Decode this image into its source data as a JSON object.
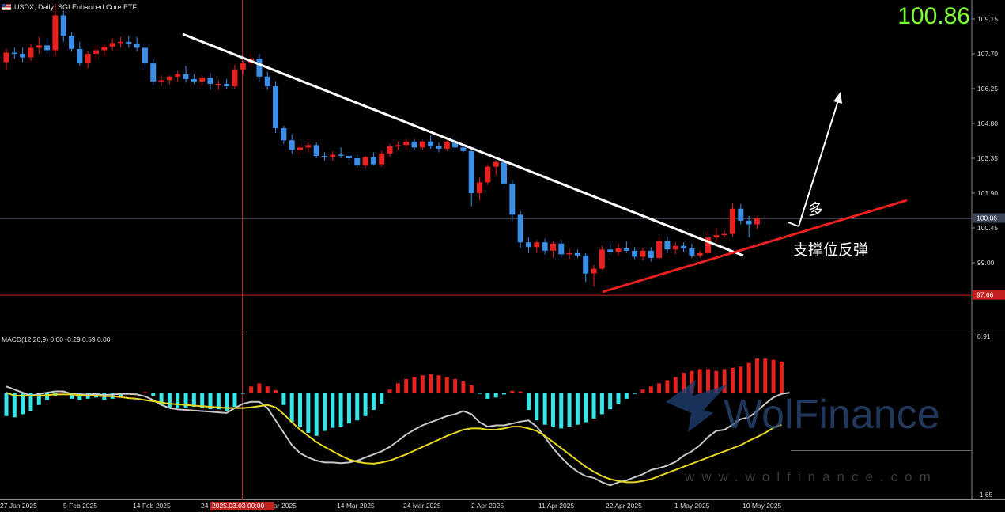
{
  "header": {
    "symbol_line": "USDX, Daily:  SGI Enhanced Core ETF",
    "price_big": "100.86"
  },
  "annotations": {
    "bull_label": "多",
    "support_label": "支撑位反弹"
  },
  "watermark": {
    "brand": "WolFinance",
    "url": "www.wolfinance.com"
  },
  "colors": {
    "bull": "#e8201e",
    "bear": "#3b8fe8",
    "hist_pos": "#e8201e",
    "hist_neg": "#35e6e8",
    "macd_line": "#c8c8c8",
    "signal_line": "#e6d820",
    "trendline": "#ffffff",
    "support_line": "#e8201e",
    "price_big": "#7cff33"
  },
  "chart_data": [
    {
      "type": "candlestick",
      "title": "USDX, Daily: SGI Enhanced Core ETF",
      "ylim": [
        96.6,
        110.1
      ],
      "y_ticks": [
        "109.15",
        "107.70",
        "106.25",
        "104.80",
        "103.35",
        "101.90",
        "100.45",
        "99.00"
      ],
      "current_price": "100.86",
      "low_marker": "97.66",
      "crosshair_date": "2025.03.03 00:00",
      "x_labels": [
        "27 Jan 2025",
        "5 Feb 2025",
        "14 Feb 2025",
        "24",
        "Mar 2025",
        "14 Mar 2025",
        "24 Mar 2025",
        "2 Apr 2025",
        "11 Apr 2025",
        "22 Apr 2025",
        "1 May 2025",
        "10 May 2025"
      ],
      "candles": [
        {
          "o": 107.35,
          "h": 107.9,
          "l": 107.05,
          "c": 107.75
        },
        {
          "o": 107.75,
          "h": 107.95,
          "l": 107.5,
          "c": 107.7
        },
        {
          "o": 107.7,
          "h": 107.95,
          "l": 107.35,
          "c": 107.55
        },
        {
          "o": 107.55,
          "h": 108.1,
          "l": 107.4,
          "c": 107.95
        },
        {
          "o": 107.95,
          "h": 108.4,
          "l": 107.7,
          "c": 108.05
        },
        {
          "o": 108.05,
          "h": 108.35,
          "l": 107.7,
          "c": 107.85
        },
        {
          "o": 107.85,
          "h": 109.8,
          "l": 107.6,
          "c": 109.3
        },
        {
          "o": 109.3,
          "h": 109.5,
          "l": 108.2,
          "c": 108.45
        },
        {
          "o": 108.45,
          "h": 108.6,
          "l": 107.8,
          "c": 107.9
        },
        {
          "o": 107.9,
          "h": 108.2,
          "l": 107.2,
          "c": 107.3
        },
        {
          "o": 107.3,
          "h": 107.8,
          "l": 107.1,
          "c": 107.7
        },
        {
          "o": 107.7,
          "h": 108.05,
          "l": 107.45,
          "c": 107.85
        },
        {
          "o": 107.85,
          "h": 108.1,
          "l": 107.6,
          "c": 108.0
        },
        {
          "o": 108.0,
          "h": 108.35,
          "l": 107.85,
          "c": 108.15
        },
        {
          "o": 108.15,
          "h": 108.4,
          "l": 107.95,
          "c": 108.2
        },
        {
          "o": 108.2,
          "h": 108.45,
          "l": 107.95,
          "c": 108.1
        },
        {
          "o": 108.1,
          "h": 108.4,
          "l": 107.8,
          "c": 107.95
        },
        {
          "o": 107.95,
          "h": 108.1,
          "l": 107.1,
          "c": 107.3
        },
        {
          "o": 107.3,
          "h": 107.5,
          "l": 106.4,
          "c": 106.55
        },
        {
          "o": 106.55,
          "h": 106.8,
          "l": 106.35,
          "c": 106.6
        },
        {
          "o": 106.6,
          "h": 106.8,
          "l": 106.45,
          "c": 106.75
        },
        {
          "o": 106.75,
          "h": 107.0,
          "l": 106.55,
          "c": 106.85
        },
        {
          "o": 106.85,
          "h": 107.2,
          "l": 106.5,
          "c": 106.65
        },
        {
          "o": 106.65,
          "h": 106.85,
          "l": 106.45,
          "c": 106.55
        },
        {
          "o": 106.55,
          "h": 106.8,
          "l": 106.35,
          "c": 106.7
        },
        {
          "o": 106.7,
          "h": 106.9,
          "l": 106.2,
          "c": 106.45
        },
        {
          "o": 106.45,
          "h": 106.6,
          "l": 106.2,
          "c": 106.45
        },
        {
          "o": 106.45,
          "h": 106.65,
          "l": 106.25,
          "c": 106.35
        },
        {
          "o": 106.35,
          "h": 107.25,
          "l": 106.25,
          "c": 107.05
        },
        {
          "o": 107.05,
          "h": 107.4,
          "l": 106.85,
          "c": 107.3
        },
        {
          "o": 107.3,
          "h": 107.7,
          "l": 107.15,
          "c": 107.5
        },
        {
          "o": 107.5,
          "h": 107.7,
          "l": 106.55,
          "c": 106.75
        },
        {
          "o": 106.75,
          "h": 106.95,
          "l": 106.2,
          "c": 106.35
        },
        {
          "o": 106.35,
          "h": 106.55,
          "l": 104.4,
          "c": 104.6
        },
        {
          "o": 104.6,
          "h": 104.7,
          "l": 103.95,
          "c": 104.1
        },
        {
          "o": 104.1,
          "h": 104.35,
          "l": 103.55,
          "c": 103.7
        },
        {
          "o": 103.7,
          "h": 103.95,
          "l": 103.5,
          "c": 103.8
        },
        {
          "o": 103.8,
          "h": 104.0,
          "l": 103.6,
          "c": 103.9
        },
        {
          "o": 103.9,
          "h": 104.0,
          "l": 103.35,
          "c": 103.45
        },
        {
          "o": 103.45,
          "h": 103.6,
          "l": 103.25,
          "c": 103.4
        },
        {
          "o": 103.4,
          "h": 103.65,
          "l": 103.25,
          "c": 103.5
        },
        {
          "o": 103.5,
          "h": 103.8,
          "l": 103.35,
          "c": 103.45
        },
        {
          "o": 103.45,
          "h": 103.55,
          "l": 103.25,
          "c": 103.35
        },
        {
          "o": 103.35,
          "h": 103.5,
          "l": 102.95,
          "c": 103.05
        },
        {
          "o": 103.05,
          "h": 103.45,
          "l": 102.95,
          "c": 103.4
        },
        {
          "o": 103.4,
          "h": 103.6,
          "l": 103.05,
          "c": 103.1
        },
        {
          "o": 103.1,
          "h": 103.65,
          "l": 103.0,
          "c": 103.55
        },
        {
          "o": 103.55,
          "h": 103.95,
          "l": 103.4,
          "c": 103.85
        },
        {
          "o": 103.85,
          "h": 104.05,
          "l": 103.7,
          "c": 103.9
        },
        {
          "o": 103.9,
          "h": 104.15,
          "l": 103.7,
          "c": 104.05
        },
        {
          "o": 104.05,
          "h": 104.15,
          "l": 103.7,
          "c": 103.8
        },
        {
          "o": 103.8,
          "h": 104.1,
          "l": 103.7,
          "c": 104.05
        },
        {
          "o": 104.05,
          "h": 104.3,
          "l": 103.75,
          "c": 103.85
        },
        {
          "o": 103.85,
          "h": 104.0,
          "l": 103.6,
          "c": 103.75
        },
        {
          "o": 103.75,
          "h": 104.25,
          "l": 103.65,
          "c": 104.05
        },
        {
          "o": 104.05,
          "h": 104.2,
          "l": 103.7,
          "c": 103.8
        },
        {
          "o": 103.8,
          "h": 103.95,
          "l": 103.6,
          "c": 103.65
        },
        {
          "o": 103.65,
          "h": 103.8,
          "l": 101.35,
          "c": 101.9
        },
        {
          "o": 101.9,
          "h": 102.55,
          "l": 101.6,
          "c": 102.35
        },
        {
          "o": 102.35,
          "h": 103.1,
          "l": 102.25,
          "c": 103.0
        },
        {
          "o": 103.0,
          "h": 103.25,
          "l": 102.65,
          "c": 103.2
        },
        {
          "o": 103.2,
          "h": 103.25,
          "l": 102.1,
          "c": 102.3
        },
        {
          "o": 102.3,
          "h": 102.45,
          "l": 100.75,
          "c": 101.0
        },
        {
          "o": 101.0,
          "h": 101.15,
          "l": 99.6,
          "c": 99.85
        },
        {
          "o": 99.85,
          "h": 100.05,
          "l": 99.4,
          "c": 99.65
        },
        {
          "o": 99.65,
          "h": 99.95,
          "l": 99.4,
          "c": 99.85
        },
        {
          "o": 99.85,
          "h": 100.0,
          "l": 99.35,
          "c": 99.5
        },
        {
          "o": 99.5,
          "h": 99.9,
          "l": 99.2,
          "c": 99.8
        },
        {
          "o": 99.8,
          "h": 99.95,
          "l": 99.2,
          "c": 99.35
        },
        {
          "o": 99.35,
          "h": 99.6,
          "l": 99.15,
          "c": 99.4
        },
        {
          "o": 99.4,
          "h": 99.55,
          "l": 99.2,
          "c": 99.3
        },
        {
          "o": 99.3,
          "h": 99.4,
          "l": 98.2,
          "c": 98.55
        },
        {
          "o": 98.55,
          "h": 98.9,
          "l": 98.0,
          "c": 98.75
        },
        {
          "o": 98.75,
          "h": 99.7,
          "l": 98.7,
          "c": 99.55
        },
        {
          "o": 99.55,
          "h": 99.85,
          "l": 99.3,
          "c": 99.45
        },
        {
          "o": 99.45,
          "h": 99.8,
          "l": 99.3,
          "c": 99.6
        },
        {
          "o": 99.6,
          "h": 99.9,
          "l": 99.4,
          "c": 99.5
        },
        {
          "o": 99.5,
          "h": 99.65,
          "l": 99.15,
          "c": 99.25
        },
        {
          "o": 99.25,
          "h": 99.6,
          "l": 99.1,
          "c": 99.5
        },
        {
          "o": 99.5,
          "h": 99.65,
          "l": 99.05,
          "c": 99.2
        },
        {
          "o": 99.2,
          "h": 100.05,
          "l": 99.15,
          "c": 99.9
        },
        {
          "o": 99.9,
          "h": 100.1,
          "l": 99.4,
          "c": 99.55
        },
        {
          "o": 99.55,
          "h": 99.85,
          "l": 99.35,
          "c": 99.7
        },
        {
          "o": 99.7,
          "h": 99.85,
          "l": 99.45,
          "c": 99.6
        },
        {
          "o": 99.6,
          "h": 99.8,
          "l": 99.2,
          "c": 99.3
        },
        {
          "o": 99.3,
          "h": 99.5,
          "l": 99.2,
          "c": 99.4
        },
        {
          "o": 99.4,
          "h": 100.3,
          "l": 99.35,
          "c": 100.05
        },
        {
          "o": 100.05,
          "h": 100.45,
          "l": 99.85,
          "c": 100.15
        },
        {
          "o": 100.15,
          "h": 100.35,
          "l": 100.05,
          "c": 100.2
        },
        {
          "o": 100.2,
          "h": 101.5,
          "l": 100.1,
          "c": 101.25
        },
        {
          "o": 101.25,
          "h": 101.45,
          "l": 100.6,
          "c": 100.75
        },
        {
          "o": 100.75,
          "h": 100.95,
          "l": 100.05,
          "c": 100.6
        },
        {
          "o": 100.6,
          "h": 100.9,
          "l": 100.4,
          "c": 100.86
        }
      ]
    },
    {
      "type": "macd",
      "title": "MACD(12,26,9) 0.00 -0.29 0.59 0.00",
      "ylim": [
        -1.65,
        0.91
      ],
      "y_ticks": [
        "0.91",
        "-1.65"
      ],
      "histogram": [
        -0.38,
        -0.4,
        -0.35,
        -0.3,
        -0.2,
        -0.12,
        -0.05,
        0.02,
        -0.1,
        -0.12,
        -0.1,
        -0.08,
        -0.12,
        -0.1,
        -0.06,
        -0.03,
        -0.01,
        0.01,
        -0.05,
        -0.2,
        -0.25,
        -0.25,
        -0.25,
        -0.23,
        -0.25,
        -0.27,
        -0.27,
        -0.3,
        -0.23,
        -0.02,
        0.1,
        0.15,
        0.1,
        0.04,
        -0.2,
        -0.48,
        -0.55,
        -0.65,
        -0.7,
        -0.62,
        -0.57,
        -0.55,
        -0.5,
        -0.45,
        -0.38,
        -0.28,
        -0.18,
        0.05,
        0.15,
        0.22,
        0.25,
        0.28,
        0.3,
        0.28,
        0.25,
        0.22,
        0.18,
        0.12,
        -0.02,
        -0.1,
        -0.08,
        -0.03,
        0.03,
        0.02,
        -0.28,
        -0.45,
        -0.52,
        -0.55,
        -0.58,
        -0.55,
        -0.52,
        -0.48,
        -0.42,
        -0.35,
        -0.27,
        -0.18,
        -0.1,
        -0.02,
        0.05,
        0.1,
        0.15,
        0.2,
        0.25,
        0.32,
        0.35,
        0.38,
        0.38,
        0.35,
        0.38,
        0.4,
        0.42,
        0.48,
        0.55,
        0.55,
        0.53,
        0.5
      ],
      "macd_line": [
        0.1,
        0.05,
        0.0,
        -0.05,
        -0.02,
        0.0,
        0.02,
        0.02,
        -0.02,
        -0.03,
        -0.03,
        -0.02,
        -0.04,
        -0.03,
        -0.02,
        -0.02,
        -0.03,
        -0.06,
        -0.12,
        -0.2,
        -0.25,
        -0.27,
        -0.28,
        -0.29,
        -0.3,
        -0.31,
        -0.32,
        -0.33,
        -0.25,
        -0.18,
        -0.15,
        -0.15,
        -0.25,
        -0.45,
        -0.65,
        -0.85,
        -0.98,
        -1.05,
        -1.1,
        -1.13,
        -1.13,
        -1.14,
        -1.13,
        -1.1,
        -1.05,
        -1.0,
        -0.95,
        -0.88,
        -0.78,
        -0.68,
        -0.6,
        -0.53,
        -0.48,
        -0.43,
        -0.38,
        -0.35,
        -0.3,
        -0.35,
        -0.48,
        -0.55,
        -0.53,
        -0.53,
        -0.5,
        -0.47,
        -0.45,
        -0.55,
        -0.72,
        -0.9,
        -1.05,
        -1.18,
        -1.28,
        -1.35,
        -1.38,
        -1.45,
        -1.5,
        -1.45,
        -1.42,
        -1.37,
        -1.32,
        -1.25,
        -1.22,
        -1.18,
        -1.12,
        -1.02,
        -0.95,
        -0.85,
        -0.72,
        -0.62,
        -0.6,
        -0.52,
        -0.43,
        -0.4,
        -0.3,
        -0.18,
        -0.08,
        -0.02,
        0.0
      ],
      "signal_line": [
        0.0,
        -0.05,
        -0.05,
        -0.05,
        -0.05,
        -0.04,
        -0.03,
        -0.03,
        -0.03,
        -0.04,
        -0.05,
        -0.05,
        -0.06,
        -0.06,
        -0.07,
        -0.09,
        -0.1,
        -0.12,
        -0.14,
        -0.16,
        -0.18,
        -0.19,
        -0.2,
        -0.21,
        -0.22,
        -0.23,
        -0.24,
        -0.25,
        -0.25,
        -0.25,
        -0.24,
        -0.22,
        -0.2,
        -0.24,
        -0.35,
        -0.48,
        -0.6,
        -0.7,
        -0.8,
        -0.88,
        -0.95,
        -1.02,
        -1.08,
        -1.12,
        -1.14,
        -1.15,
        -1.13,
        -1.1,
        -1.05,
        -1.0,
        -0.94,
        -0.88,
        -0.82,
        -0.76,
        -0.7,
        -0.65,
        -0.6,
        -0.58,
        -0.58,
        -0.6,
        -0.6,
        -0.58,
        -0.55,
        -0.55,
        -0.58,
        -0.62,
        -0.7,
        -0.8,
        -0.9,
        -1.0,
        -1.1,
        -1.2,
        -1.28,
        -1.35,
        -1.4,
        -1.43,
        -1.45,
        -1.45,
        -1.43,
        -1.4,
        -1.35,
        -1.3,
        -1.25,
        -1.2,
        -1.15,
        -1.1,
        -1.05,
        -1.0,
        -0.95,
        -0.9,
        -0.85,
        -0.78,
        -0.72,
        -0.65,
        -0.57,
        -0.52
      ]
    }
  ]
}
